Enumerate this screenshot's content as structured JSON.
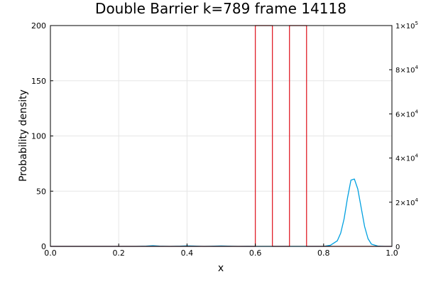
{
  "chart_data": {
    "type": "line",
    "title": "Double Barrier k=789 frame 14118",
    "xlabel": "x",
    "ylabel": "Probability density",
    "xlim": [
      0.0,
      1.0
    ],
    "ylim": [
      0,
      200
    ],
    "y2lim": [
      0,
      100000
    ],
    "grid": true,
    "legend": "none",
    "x_ticks": [
      "0.0",
      "0.2",
      "0.4",
      "0.6",
      "0.8",
      "1.0"
    ],
    "y_ticks": [
      "0",
      "50",
      "100",
      "150",
      "200"
    ],
    "y2_ticks": [
      {
        "mantissa": "0",
        "exponent": ""
      },
      {
        "mantissa": "2×10",
        "exponent": "4"
      },
      {
        "mantissa": "4×10",
        "exponent": "4"
      },
      {
        "mantissa": "6×10",
        "exponent": "4"
      },
      {
        "mantissa": "8×10",
        "exponent": "4"
      },
      {
        "mantissa": "1×10",
        "exponent": "5"
      }
    ],
    "series": [
      {
        "axis": "left",
        "color": "#00a0e0",
        "x": [
          0.0,
          0.25,
          0.28,
          0.3,
          0.32,
          0.35,
          0.38,
          0.4,
          0.42,
          0.45,
          0.48,
          0.5,
          0.52,
          0.55,
          0.58,
          0.6,
          0.62,
          0.65,
          0.7,
          0.75,
          0.8,
          0.82,
          0.84,
          0.85,
          0.86,
          0.87,
          0.88,
          0.89,
          0.9,
          0.91,
          0.92,
          0.93,
          0.94,
          0.96,
          0.98,
          1.0
        ],
        "y": [
          0,
          0,
          0.2,
          0.6,
          0.2,
          0,
          0.2,
          0.5,
          0.3,
          0,
          0.2,
          0.4,
          0.2,
          0,
          0.1,
          0,
          0,
          0,
          0,
          0,
          0,
          1,
          5,
          12,
          25,
          44,
          60,
          61,
          52,
          35,
          18,
          7,
          2,
          0.2,
          0,
          0
        ]
      },
      {
        "axis": "right",
        "color": "#e0202a",
        "x": [
          0.0,
          0.6,
          0.6,
          0.65,
          0.65,
          0.7,
          0.7,
          0.75,
          0.75,
          1.0
        ],
        "y": [
          0,
          0,
          100000,
          100000,
          0,
          0,
          100000,
          100000,
          0,
          0
        ]
      }
    ]
  }
}
